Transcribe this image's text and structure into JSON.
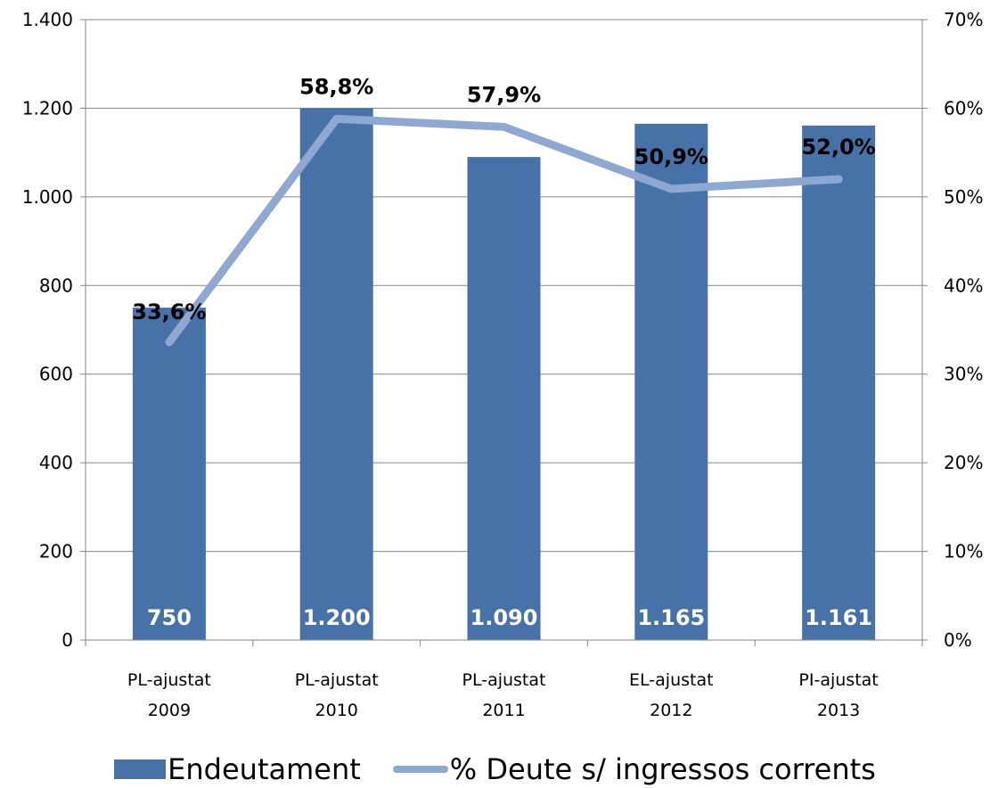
{
  "chart_data": {
    "type": "bar",
    "categories": [
      [
        "PL-ajustat",
        "2009"
      ],
      [
        "PL-ajustat",
        "2010"
      ],
      [
        "PL-ajustat",
        "2011"
      ],
      [
        "EL-ajustat",
        "2012"
      ],
      [
        "PI-ajustat",
        "2013"
      ]
    ],
    "series": [
      {
        "name": "Endeutament",
        "type": "bar",
        "axis": "left",
        "values": [
          750,
          1200,
          1090,
          1165,
          1161
        ],
        "labels": [
          "750",
          "1.200",
          "1.090",
          "1.165",
          "1.161"
        ],
        "color": "#4672A8"
      },
      {
        "name": "% Deute s/ ingressos corrents",
        "type": "line",
        "axis": "right",
        "values": [
          33.6,
          58.8,
          57.9,
          50.9,
          52.0
        ],
        "labels": [
          "33,6%",
          "58,8%",
          "57,9%",
          "50,9%",
          "52,0%"
        ],
        "color": "#8EA8D2"
      }
    ],
    "left_axis": {
      "ylim": [
        0,
        1400
      ],
      "ticks": [
        0,
        200,
        400,
        600,
        800,
        1000,
        1200,
        1400
      ],
      "tick_labels": [
        "0",
        "200",
        "400",
        "600",
        "800",
        "1.000",
        "1.200",
        "1.400"
      ]
    },
    "right_axis": {
      "ylim": [
        0,
        70
      ],
      "tick_labels": [
        "0%",
        "10%",
        "20%",
        "30%",
        "40%",
        "50%",
        "60%",
        "70%"
      ]
    },
    "grid": true,
    "legend_position": "bottom",
    "title": "",
    "xlabel": "",
    "ylabel": ""
  }
}
